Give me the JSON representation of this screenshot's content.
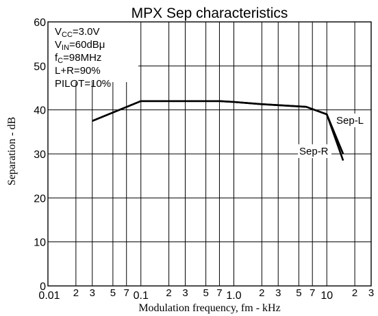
{
  "chart_data": {
    "type": "line",
    "title": "MPX Sep characteristics",
    "xlabel": "Modulation frequency, fm - kHz",
    "ylabel": "Separation - dB",
    "x_scale": "log",
    "xlim": [
      0.01,
      30
    ],
    "ylim": [
      0,
      60
    ],
    "grid": true,
    "x_tick_labels": [
      {
        "value": 0.01,
        "label": "0.01"
      },
      {
        "value": 0.02,
        "label": "2"
      },
      {
        "value": 0.03,
        "label": "3"
      },
      {
        "value": 0.05,
        "label": "5"
      },
      {
        "value": 0.07,
        "label": "7"
      },
      {
        "value": 0.1,
        "label": "0.1"
      },
      {
        "value": 0.2,
        "label": "2"
      },
      {
        "value": 0.3,
        "label": "3"
      },
      {
        "value": 0.5,
        "label": "5"
      },
      {
        "value": 0.7,
        "label": "7"
      },
      {
        "value": 1,
        "label": "1.0"
      },
      {
        "value": 2,
        "label": "2"
      },
      {
        "value": 3,
        "label": "3"
      },
      {
        "value": 5,
        "label": "5"
      },
      {
        "value": 7,
        "label": "7"
      },
      {
        "value": 10,
        "label": "10"
      },
      {
        "value": 20,
        "label": "2"
      },
      {
        "value": 30,
        "label": "3"
      }
    ],
    "y_ticks": [
      0,
      10,
      20,
      30,
      40,
      50,
      60
    ],
    "conditions": [
      {
        "main": "V",
        "sub": "CC",
        "rest": "=3.0V"
      },
      {
        "main": "V",
        "sub": "IN",
        "rest": "=60dBμ"
      },
      {
        "main": "f",
        "sub": "C",
        "rest": "=98MHz"
      },
      {
        "main": "L+R=90%",
        "sub": "",
        "rest": ""
      },
      {
        "main": "PILOT=10%",
        "sub": "",
        "rest": ""
      }
    ],
    "series": [
      {
        "name": "Sep-R",
        "x": [
          0.03,
          0.1,
          0.3,
          0.7,
          1,
          2,
          6,
          10,
          15
        ],
        "y": [
          37.5,
          42,
          42,
          42,
          41.8,
          41.3,
          40.7,
          39,
          30
        ]
      },
      {
        "name": "Sep-L",
        "x": [
          0.03,
          0.1,
          0.3,
          0.7,
          1,
          2,
          6,
          10,
          15
        ],
        "y": [
          37.5,
          42,
          42,
          42,
          41.8,
          41.3,
          40.7,
          39,
          28.5
        ]
      }
    ],
    "series_label_positions": [
      "below-right",
      "right"
    ]
  }
}
